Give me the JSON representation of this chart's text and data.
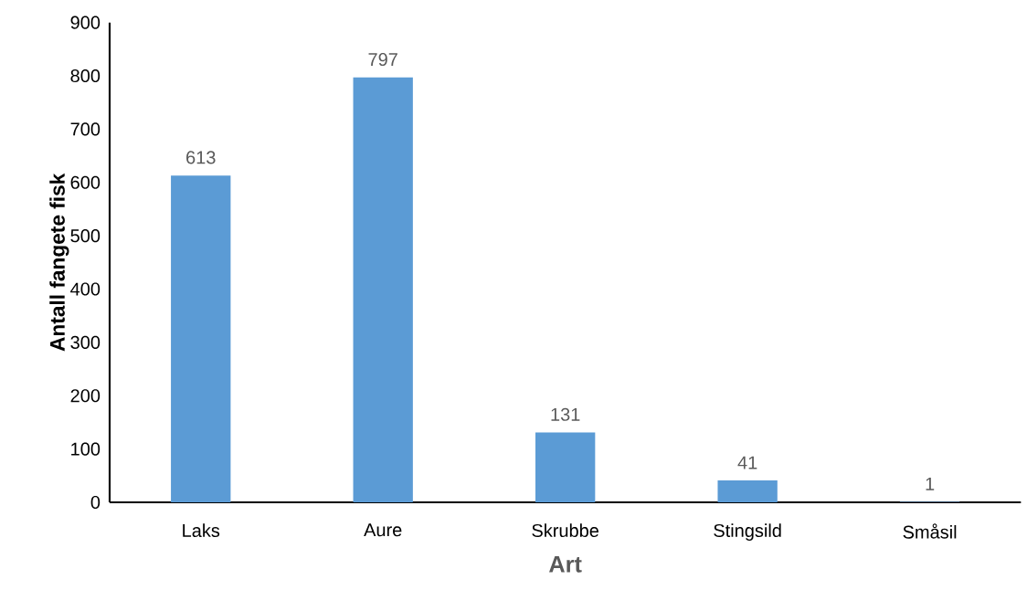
{
  "chart_data": {
    "type": "bar",
    "xlabel": "Art",
    "ylabel": "Antall fangete fisk",
    "categories": [
      "Laks",
      "Aure",
      "Skrubbe",
      "Stingsild",
      "Småsil"
    ],
    "values": [
      613,
      797,
      131,
      41,
      1
    ],
    "color": "#5b9bd5",
    "ylim": [
      0,
      900
    ],
    "yticks": [
      0,
      100,
      200,
      300,
      400,
      500,
      600,
      700,
      800,
      900
    ],
    "data_labels": true
  }
}
